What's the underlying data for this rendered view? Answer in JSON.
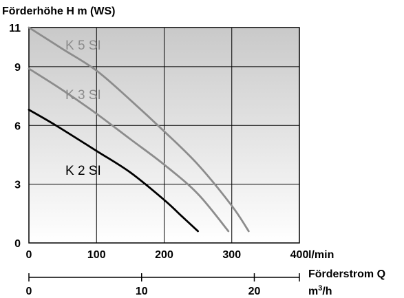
{
  "chart_data": {
    "type": "line",
    "ylabel": "Förderhöhe H m (WS)",
    "yticks": [
      0,
      3,
      6,
      9,
      11
    ],
    "ylim": [
      0,
      11
    ],
    "xlabel_lmin": "l/min",
    "xticks_lmin": [
      0,
      100,
      200,
      300,
      400
    ],
    "xlim_lmin": [
      0,
      400
    ],
    "xlabel_m3h_title": "Förderstrom Q",
    "xlabel_m3h_unit_base": "m",
    "xlabel_m3h_unit_sup": "3",
    "xlabel_m3h_unit_tail": "/h",
    "xticks_m3h": [
      0,
      10,
      20
    ],
    "xlim_m3h": [
      0,
      24
    ],
    "grid": true,
    "series": [
      {
        "name": "K 5 SI",
        "color": "#8c8c8c",
        "x": [
          0,
          50,
          100,
          150,
          200,
          250,
          300,
          325
        ],
        "y": [
          11,
          9.9,
          8.8,
          7.3,
          5.7,
          4.0,
          1.9,
          0.6
        ]
      },
      {
        "name": "K 3 SI",
        "color": "#8c8c8c",
        "x": [
          0,
          50,
          100,
          150,
          200,
          250,
          295
        ],
        "y": [
          8.9,
          7.8,
          6.6,
          5.3,
          4.0,
          2.5,
          0.6
        ]
      },
      {
        "name": "K 2 SI",
        "color": "#000000",
        "x": [
          0,
          40,
          100,
          150,
          200,
          225,
          250
        ],
        "y": [
          6.8,
          6.0,
          4.7,
          3.6,
          2.2,
          1.4,
          0.6
        ]
      }
    ],
    "series_labels": [
      "K 5 SI",
      "K 3 SI",
      "K 2 SI"
    ]
  }
}
